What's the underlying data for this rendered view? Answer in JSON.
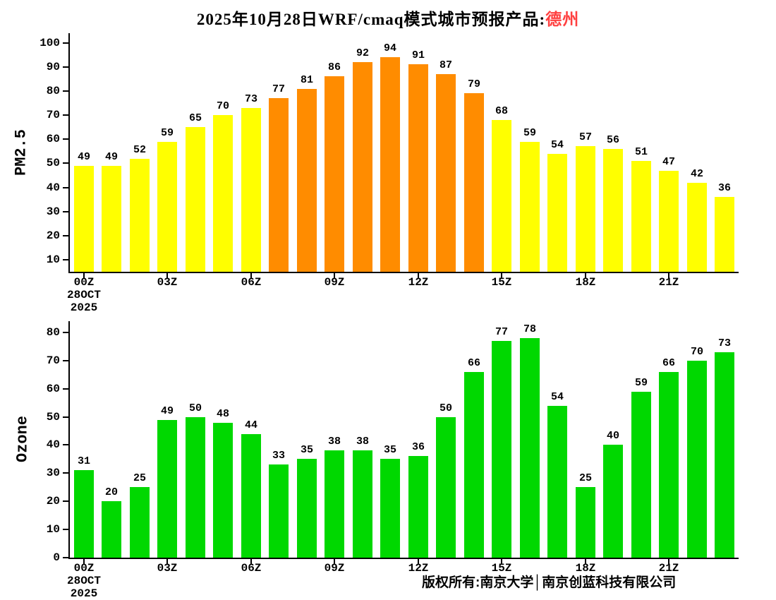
{
  "title": {
    "prefix": "2025年10月28日WRF/cmaq模式城市预报产品:",
    "city": "德州",
    "city_color": "#ff4040"
  },
  "footer": "版权所有:南京大学│南京创蓝科技有限公司",
  "chart_data": [
    {
      "type": "bar",
      "name": "pm25-forecast",
      "ylabel": "PM2.5",
      "values": [
        49,
        49,
        52,
        59,
        65,
        70,
        73,
        77,
        81,
        86,
        92,
        94,
        91,
        87,
        79,
        68,
        59,
        54,
        57,
        56,
        51,
        47,
        42,
        36
      ],
      "bar_color_low": "#ffff00",
      "bar_color_high": "#ff8c00",
      "high_threshold": 75,
      "ylim": [
        5,
        104
      ],
      "yticks": [
        10,
        20,
        30,
        40,
        50,
        60,
        70,
        80,
        90,
        100
      ],
      "xtick_positions": [
        0,
        3,
        6,
        9,
        12,
        15,
        18,
        21
      ],
      "xtick_labels": [
        "00Z",
        "03Z",
        "06Z",
        "09Z",
        "12Z",
        "15Z",
        "18Z",
        "21Z"
      ],
      "date_lines": [
        "28OCT",
        "2025"
      ],
      "grid": false,
      "legend": "none"
    },
    {
      "type": "bar",
      "name": "ozone-forecast",
      "ylabel": "Ozone",
      "values": [
        31,
        20,
        25,
        49,
        50,
        48,
        44,
        33,
        35,
        38,
        38,
        35,
        36,
        50,
        66,
        77,
        78,
        54,
        25,
        40,
        59,
        66,
        70,
        73
      ],
      "bar_color_low": "#00d800",
      "bar_color_high": "#00d800",
      "high_threshold": null,
      "ylim": [
        0,
        84
      ],
      "yticks": [
        0,
        10,
        20,
        30,
        40,
        50,
        60,
        70,
        80
      ],
      "xtick_positions": [
        0,
        3,
        6,
        9,
        12,
        15,
        18,
        21
      ],
      "xtick_labels": [
        "00Z",
        "03Z",
        "06Z",
        "09Z",
        "12Z",
        "15Z",
        "18Z",
        "21Z"
      ],
      "date_lines": [
        "28OCT",
        "2025"
      ],
      "grid": false,
      "legend": "none"
    }
  ]
}
